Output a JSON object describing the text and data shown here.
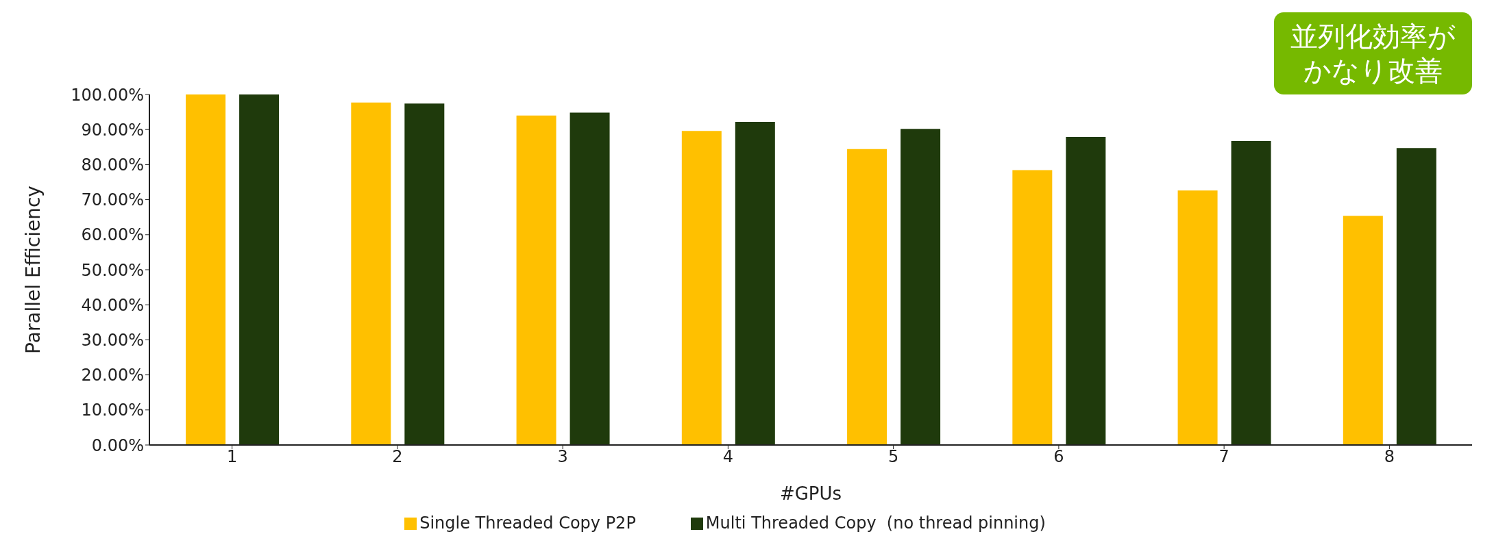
{
  "chart_data": {
    "type": "bar",
    "xlabel": "#GPUs",
    "ylabel": "Parallel Efficiency",
    "categories": [
      "1",
      "2",
      "3",
      "4",
      "5",
      "6",
      "7",
      "8"
    ],
    "series": [
      {
        "name": "Single Threaded Copy P2P",
        "color": "#ffc000",
        "values": [
          100,
          97.7,
          94,
          89.6,
          84.4,
          78.4,
          72.6,
          65.4
        ]
      },
      {
        "name": "Multi Threaded Copy  (no thread pinning)",
        "color": "#1f3a0c",
        "values": [
          100,
          97.4,
          94.8,
          92.2,
          90.2,
          87.9,
          86.7,
          84.7
        ]
      }
    ],
    "ylim": [
      0,
      100
    ],
    "yticks": [
      {
        "value": 0,
        "label": "0.00%"
      },
      {
        "value": 10,
        "label": "10.00%"
      },
      {
        "value": 20,
        "label": "20.00%"
      },
      {
        "value": 30,
        "label": "30.00%"
      },
      {
        "value": 40,
        "label": "40.00%"
      },
      {
        "value": 50,
        "label": "50.00%"
      },
      {
        "value": 60,
        "label": "60.00%"
      },
      {
        "value": 70,
        "label": "70.00%"
      },
      {
        "value": 80,
        "label": "80.00%"
      },
      {
        "value": 90,
        "label": "90.00%"
      },
      {
        "value": 100,
        "label": "100.00%"
      }
    ],
    "grid": false,
    "legend": "bottom",
    "annotations": [
      "並列化効率がかなり改善"
    ]
  }
}
